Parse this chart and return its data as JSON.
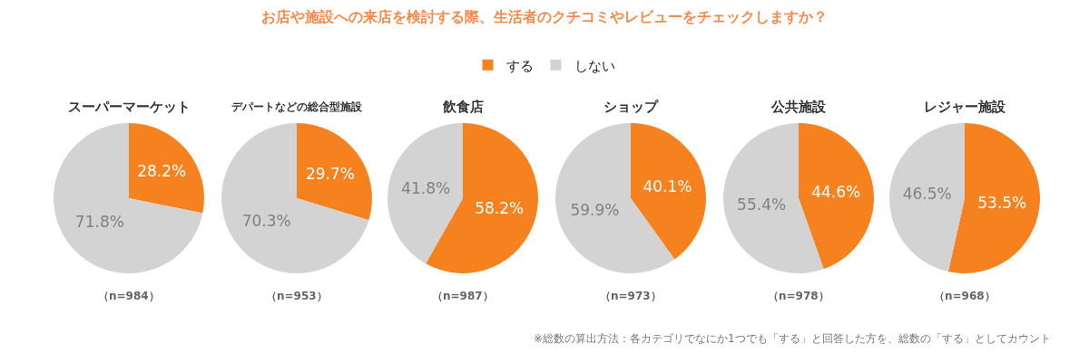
{
  "chart_data": [
    {
      "type": "pie",
      "title": "お店や施設への来店を検討する際、生活者のクチコミやレビューをチェックしますか？",
      "subtitle": "スーパーマーケット",
      "legend": "top",
      "categories": [
        "する",
        "しない"
      ],
      "values": [
        28.2,
        71.8
      ],
      "value_labels": [
        "28.2%",
        "71.8%"
      ],
      "colors": [
        "#f5821f",
        "#d3d3d3"
      ],
      "annotations": [
        "（n=984）"
      ]
    },
    {
      "type": "pie",
      "subtitle": "デパートなどの総合型施設",
      "categories": [
        null,
        null
      ],
      "values": [
        29.7,
        70.3
      ],
      "value_labels": [
        "29.7%",
        "70.3%"
      ],
      "colors": [
        "#f5821f",
        "#d3d3d3"
      ],
      "annotations": [
        "（n=953）"
      ]
    },
    {
      "type": "pie",
      "subtitle": "飲食店",
      "categories": [
        null,
        null
      ],
      "values": [
        58.2,
        41.8
      ],
      "value_labels": [
        "58.2%",
        "41.8%"
      ],
      "colors": [
        "#f5821f",
        "#d3d3d3"
      ],
      "annotations": [
        "（n=987）"
      ]
    },
    {
      "type": "pie",
      "subtitle": "ショップ",
      "categories": [
        null,
        null
      ],
      "values": [
        40.1,
        59.9
      ],
      "value_labels": [
        "40.1%",
        "59.9%"
      ],
      "colors": [
        "#f5821f",
        "#d3d3d3"
      ],
      "annotations": [
        "（n=973）"
      ]
    },
    {
      "type": "pie",
      "subtitle": "公共施設",
      "categories": [
        null,
        null
      ],
      "values": [
        44.6,
        55.4
      ],
      "value_labels": [
        "44.6%",
        "55.4%"
      ],
      "colors": [
        "#f5821f",
        "#d3d3d3"
      ],
      "annotations": [
        "（n=978）"
      ]
    },
    {
      "type": "pie",
      "subtitle": "レジャー施設",
      "categories": [
        null,
        null
      ],
      "values": [
        53.5,
        46.5
      ],
      "value_labels": [
        "53.5%",
        "46.5%"
      ],
      "colors": [
        "#f5821f",
        "#d3d3d3"
      ],
      "annotations": [
        "（n=968）",
        "※総数の算出方法：各カテゴリでなにか1つでも「する」と回答した方を、総数の「する」としてカウント"
      ]
    }
  ]
}
